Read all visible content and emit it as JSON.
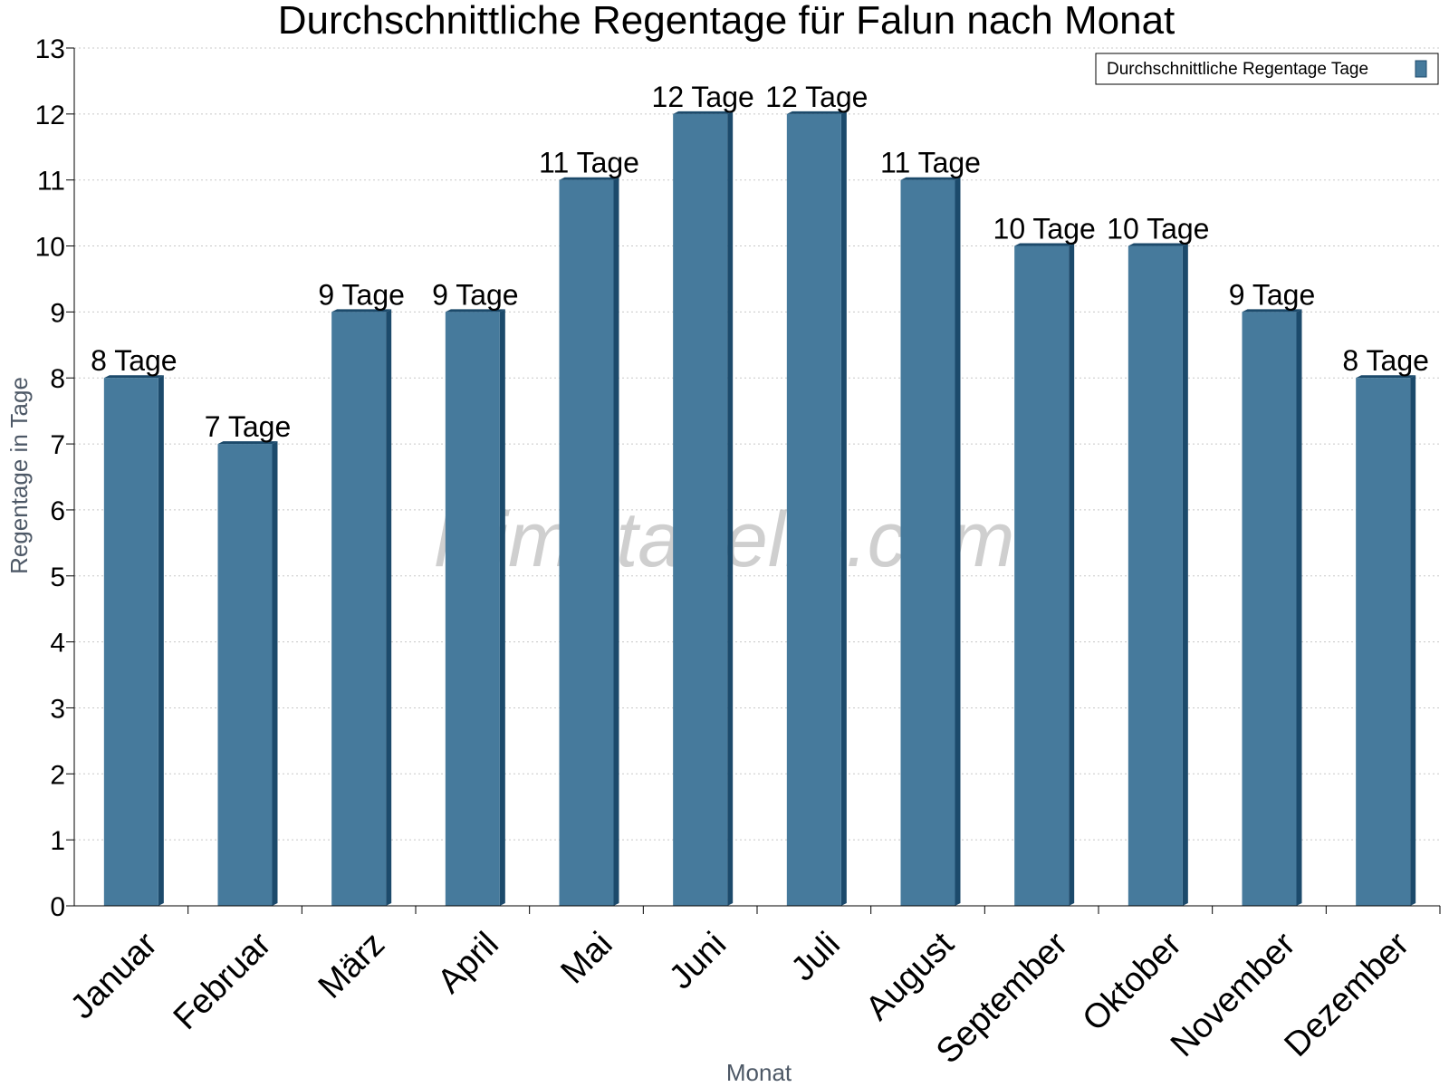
{
  "chart_data": {
    "type": "bar",
    "title": "Durchschnittliche Regentage für Falun nach Monat",
    "xlabel": "Monat",
    "ylabel": "Regentage in Tage",
    "categories": [
      "Januar",
      "Februar",
      "März",
      "April",
      "Mai",
      "Juni",
      "Juli",
      "August",
      "September",
      "Oktober",
      "November",
      "Dezember"
    ],
    "series": [
      {
        "name": "Durchschnittliche Regentage Tage",
        "values": [
          8,
          7,
          9,
          9,
          11,
          12,
          12,
          11,
          10,
          10,
          9,
          8
        ],
        "data_labels": [
          "8 Tage",
          "7 Tage",
          "9 Tage",
          "9 Tage",
          "11 Tage",
          "12 Tage",
          "12 Tage",
          "11 Tage",
          "10 Tage",
          "10 Tage",
          "9 Tage",
          "8 Tage"
        ],
        "color": "#467a9c",
        "edge_color": "#1c4a6b"
      }
    ],
    "ylim": [
      0,
      13
    ],
    "yticks": [
      "0",
      "1",
      "2",
      "3",
      "4",
      "5",
      "6",
      "7",
      "8",
      "9",
      "10",
      "11",
      "12",
      "13"
    ],
    "grid": true,
    "legend": "top-right",
    "watermark": "klimatabelle.com"
  }
}
